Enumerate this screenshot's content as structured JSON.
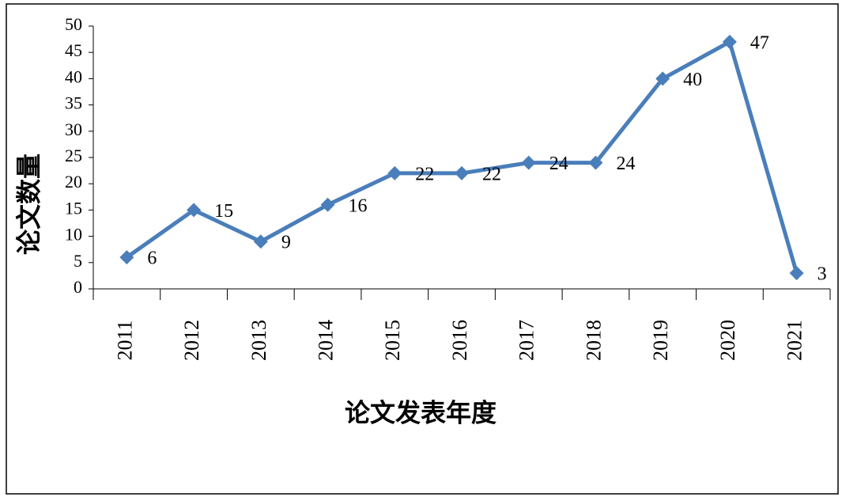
{
  "chart_data": {
    "type": "line",
    "x_label": "论文发表年度",
    "y_label": "论文数量",
    "categories": [
      "2011",
      "2012",
      "2013",
      "2014",
      "2015",
      "2016",
      "2017",
      "2018",
      "2019",
      "2020",
      "2021"
    ],
    "values": [
      6,
      15,
      9,
      16,
      22,
      22,
      24,
      24,
      40,
      47,
      3
    ],
    "color": "#4a7ebb",
    "ylim": [
      0,
      50
    ],
    "yticks": [
      0,
      5,
      10,
      15,
      20,
      25,
      30,
      35,
      40,
      45,
      50
    ],
    "data_labels": true
  }
}
